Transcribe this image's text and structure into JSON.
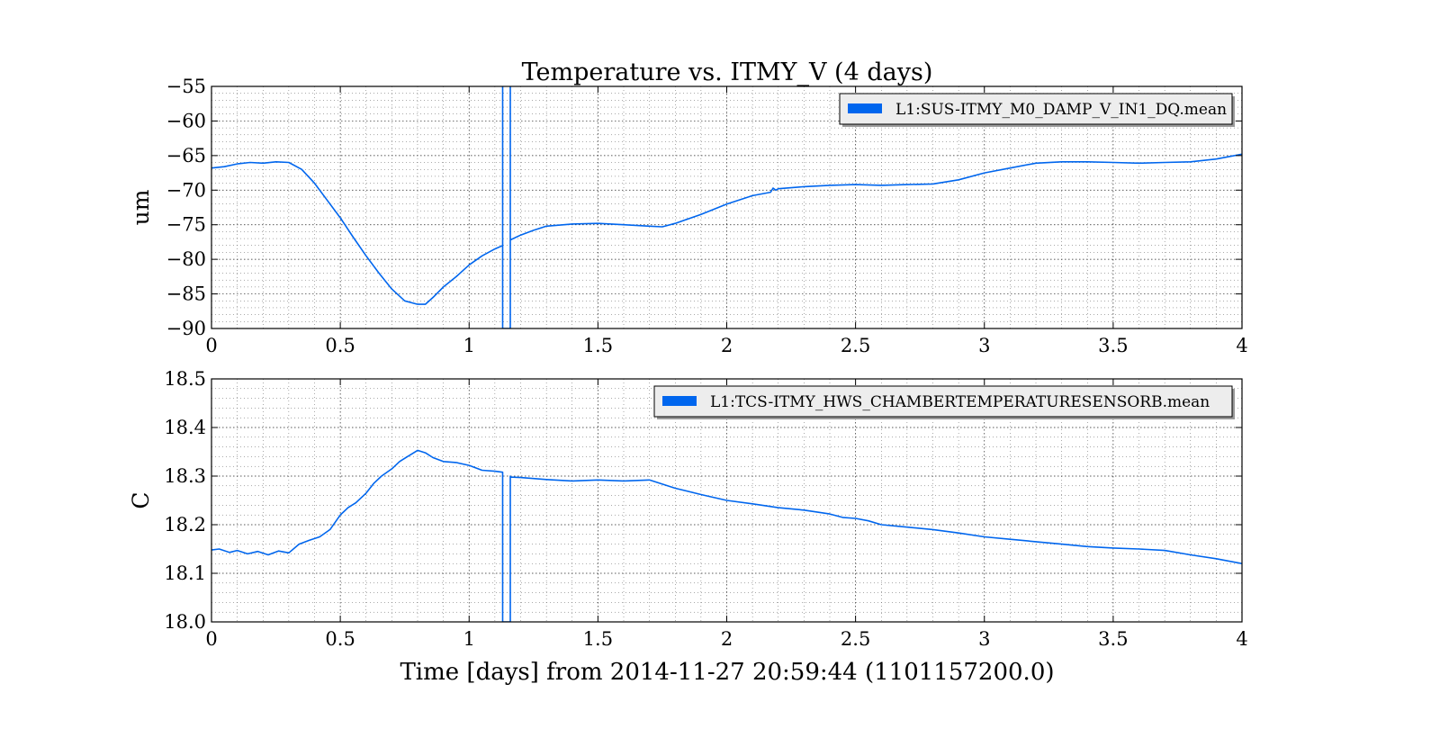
{
  "figure": {
    "title": "Temperature vs. ITMY_V (4 days)",
    "xlabel": "Time [days] from 2014-11-27 20:59:44 (1101157200.0)"
  },
  "chart_data": [
    {
      "type": "line",
      "ylabel": "um",
      "xlim": [
        0,
        4
      ],
      "ylim": [
        -90,
        -55
      ],
      "xticks": [
        0,
        0.5,
        1,
        1.5,
        2,
        2.5,
        3,
        3.5,
        4
      ],
      "xtick_labels": [
        "0",
        "0.5",
        "1",
        "1.5",
        "2",
        "2.5",
        "3",
        "3.5",
        "4"
      ],
      "yticks": [
        -90,
        -85,
        -80,
        -75,
        -70,
        -65,
        -60,
        -55
      ],
      "ytick_labels": [
        "−90",
        "−85",
        "−80",
        "−75",
        "−70",
        "−65",
        "−60",
        "−55"
      ],
      "grid": true,
      "legend_position": "top-right",
      "color": "#0066ee",
      "series": [
        {
          "name": "L1:SUS-ITMY_M0_DAMP_V_IN1_DQ.mean",
          "x": [
            0,
            0.05,
            0.1,
            0.15,
            0.2,
            0.25,
            0.3,
            0.35,
            0.4,
            0.45,
            0.5,
            0.55,
            0.6,
            0.65,
            0.7,
            0.75,
            0.8,
            0.83,
            0.86,
            0.9,
            0.95,
            1.0,
            1.05,
            1.1,
            1.13,
            1.13,
            1.13,
            1.16,
            1.16,
            1.16,
            1.2,
            1.25,
            1.3,
            1.4,
            1.5,
            1.6,
            1.7,
            1.75,
            1.8,
            1.9,
            2.0,
            2.1,
            2.17,
            2.18,
            2.19,
            2.2,
            2.3,
            2.4,
            2.5,
            2.6,
            2.7,
            2.8,
            2.9,
            3.0,
            3.1,
            3.2,
            3.3,
            3.4,
            3.5,
            3.6,
            3.7,
            3.8,
            3.9,
            4.0
          ],
          "y": [
            -66.8,
            -66.6,
            -66.2,
            -66.0,
            -66.1,
            -65.9,
            -66.0,
            -67.0,
            -69.0,
            -71.5,
            -74.0,
            -76.8,
            -79.5,
            -82.0,
            -84.3,
            -86.0,
            -86.5,
            -86.5,
            -85.5,
            -84.0,
            -82.5,
            -80.8,
            -79.5,
            -78.5,
            -78.0,
            -55,
            -90,
            -90,
            -55,
            -77.2,
            -76.5,
            -75.8,
            -75.2,
            -74.9,
            -74.8,
            -75.0,
            -75.2,
            -75.3,
            -74.8,
            -73.5,
            -72.0,
            -70.8,
            -70.3,
            -69.7,
            -70.0,
            -69.8,
            -69.5,
            -69.3,
            -69.2,
            -69.3,
            -69.2,
            -69.1,
            -68.5,
            -67.5,
            -66.8,
            -66.1,
            -65.9,
            -65.9,
            -66.0,
            -66.1,
            -66.0,
            -65.9,
            -65.5,
            -64.8
          ]
        }
      ]
    },
    {
      "type": "line",
      "ylabel": "C",
      "xlim": [
        0,
        4
      ],
      "ylim": [
        18.0,
        18.5
      ],
      "xticks": [
        0,
        0.5,
        1,
        1.5,
        2,
        2.5,
        3,
        3.5,
        4
      ],
      "xtick_labels": [
        "0",
        "0.5",
        "1",
        "1.5",
        "2",
        "2.5",
        "3",
        "3.5",
        "4"
      ],
      "yticks": [
        18.0,
        18.1,
        18.2,
        18.3,
        18.4,
        18.5
      ],
      "ytick_labels": [
        "18.0",
        "18.1",
        "18.2",
        "18.3",
        "18.4",
        "18.5"
      ],
      "grid": true,
      "legend_position": "top-right",
      "color": "#0066ee",
      "series": [
        {
          "name": "L1:TCS-ITMY_HWS_CHAMBERTEMPERATURESENSORB.mean",
          "x": [
            0,
            0.03,
            0.07,
            0.1,
            0.14,
            0.18,
            0.22,
            0.26,
            0.3,
            0.34,
            0.38,
            0.42,
            0.46,
            0.5,
            0.53,
            0.56,
            0.6,
            0.63,
            0.66,
            0.7,
            0.73,
            0.76,
            0.8,
            0.83,
            0.86,
            0.9,
            0.95,
            1.0,
            1.05,
            1.1,
            1.13,
            1.13,
            1.13,
            1.16,
            1.16,
            1.16,
            1.2,
            1.3,
            1.4,
            1.5,
            1.6,
            1.7,
            1.8,
            1.9,
            2.0,
            2.1,
            2.2,
            2.3,
            2.4,
            2.45,
            2.5,
            2.55,
            2.6,
            2.7,
            2.8,
            2.9,
            3.0,
            3.1,
            3.2,
            3.3,
            3.4,
            3.5,
            3.6,
            3.7,
            3.8,
            3.9,
            4.0
          ],
          "y": [
            18.148,
            18.15,
            18.143,
            18.147,
            18.14,
            18.145,
            18.138,
            18.146,
            18.142,
            18.16,
            18.168,
            18.175,
            18.19,
            18.22,
            18.235,
            18.245,
            18.265,
            18.285,
            18.3,
            18.315,
            18.33,
            18.34,
            18.353,
            18.348,
            18.338,
            18.33,
            18.328,
            18.322,
            18.312,
            18.31,
            18.308,
            18.0,
            18.0,
            18.0,
            18.3,
            18.298,
            18.297,
            18.293,
            18.29,
            18.292,
            18.29,
            18.292,
            18.275,
            18.262,
            18.25,
            18.243,
            18.235,
            18.23,
            18.222,
            18.215,
            18.213,
            18.208,
            18.2,
            18.195,
            18.19,
            18.183,
            18.175,
            18.17,
            18.165,
            18.16,
            18.155,
            18.152,
            18.15,
            18.147,
            18.138,
            18.13,
            18.12
          ]
        }
      ]
    }
  ]
}
